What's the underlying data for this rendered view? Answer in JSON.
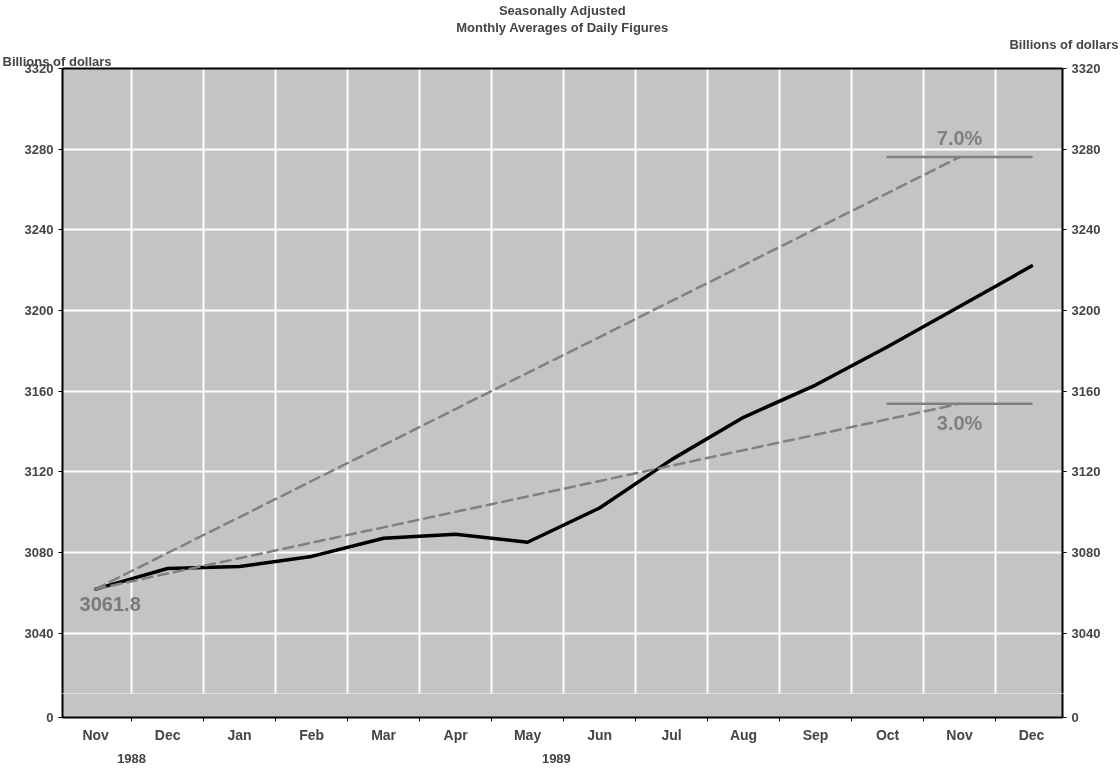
{
  "chart_data": [
    {
      "type": "line",
      "title": "Seasonally Adjusted",
      "subtitle": "Monthly Averages of Daily Figures",
      "ylabel": "Billions of dollars",
      "y2label": "Billions of dollars",
      "categories": [
        "Nov",
        "Dec",
        "Jan",
        "Feb",
        "Mar",
        "Apr",
        "May",
        "Jun",
        "Jul",
        "Aug",
        "Sep",
        "Oct",
        "Nov",
        "Dec"
      ],
      "ylim": [
        3010,
        3320
      ],
      "yticks": [
        3040,
        3080,
        3120,
        3160,
        3200,
        3240,
        3280,
        3320
      ],
      "y2lim": [
        3010,
        3320
      ],
      "y2ticks": [
        3040,
        3080,
        3120,
        3160,
        3200,
        3240,
        3280,
        3320
      ],
      "tick_labels": "y",
      "series": [
        {
          "color": "#000000",
          "line_style": "solid",
          "values": [
            3061.8,
            3072,
            3073,
            3078,
            3087,
            3089,
            3085,
            3102,
            3126,
            3147,
            3163,
            3182,
            3202,
            3222
          ],
          "value_labels": [
            "3061.8",
            null,
            null,
            null,
            null,
            null,
            null,
            null,
            null,
            null,
            null,
            null,
            null,
            null
          ]
        },
        {
          "name": "7.0%",
          "color": "#808080",
          "line_style": "dashed",
          "values": [
            3061.8,
            3079.7,
            3097.5,
            3115.4,
            3133.2,
            3151.1,
            3169.0,
            3186.8,
            3204.7,
            3222.5,
            3240.4,
            3258.2,
            3276.1,
            null
          ]
        },
        {
          "name": "3.0%",
          "color": "#808080",
          "line_style": "dashed",
          "values": [
            3061.8,
            3069.5,
            3077.1,
            3084.8,
            3092.4,
            3100.1,
            3107.7,
            3115.4,
            3123.0,
            3130.7,
            3138.3,
            3146.0,
            3153.7,
            null
          ]
        },
        {
          "color": "#808080",
          "line_style": "solid",
          "values": [
            null,
            null,
            null,
            null,
            null,
            null,
            null,
            null,
            null,
            null,
            null,
            3276.1,
            3276.1,
            3276.1
          ]
        },
        {
          "color": "#808080",
          "line_style": "solid",
          "values": [
            null,
            null,
            null,
            null,
            null,
            null,
            null,
            null,
            null,
            null,
            null,
            3153.7,
            3153.7,
            3153.7
          ]
        }
      ],
      "grid": true,
      "legend": false
    },
    {
      "type": "other",
      "annotations": [
        "0",
        "0",
        "1988",
        "1989"
      ]
    }
  ]
}
